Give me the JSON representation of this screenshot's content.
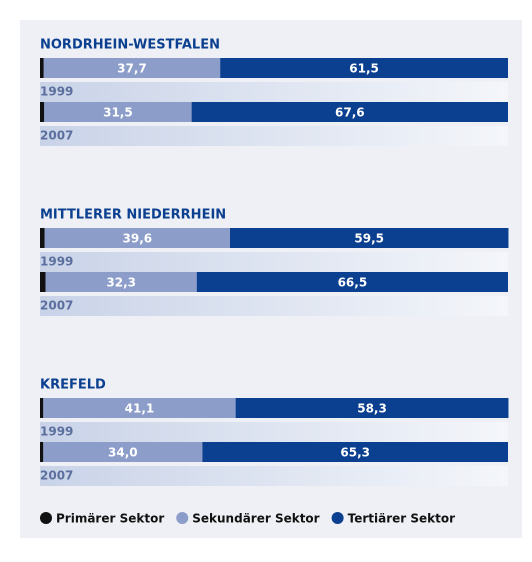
{
  "chart_data": {
    "type": "bar",
    "stacked": true,
    "orientation": "horizontal",
    "groups": [
      "NORDRHEIN-WESTFALEN",
      "MITTLERER NIEDERRHEIN",
      "KREFELD"
    ],
    "categories": [
      "1999",
      "2007",
      "1999",
      "2007",
      "1999",
      "2007"
    ],
    "xlim": [
      0,
      100
    ],
    "series": [
      {
        "name": "Primärer Sektor",
        "color": "#111111",
        "values": [
          0.8,
          0.9,
          1.0,
          1.2,
          0.7,
          0.7
        ],
        "value_labels": [
          "0,8",
          "0,9",
          "1,0",
          "1,2",
          "0,7",
          "0,7"
        ]
      },
      {
        "name": "Sekundärer Sektor",
        "color": "#8c9dca",
        "values": [
          37.7,
          31.5,
          39.6,
          32.3,
          41.1,
          34.0
        ],
        "value_labels": [
          "37,7",
          "31,5",
          "39,6",
          "32,3",
          "41,1",
          "34,0"
        ]
      },
      {
        "name": "Tertiärer Sektor",
        "color": "#0b3f8f",
        "values": [
          61.5,
          67.6,
          59.5,
          66.5,
          58.3,
          65.3
        ],
        "value_labels": [
          "61,5",
          "67,6",
          "59,5",
          "66,5",
          "58,3",
          "65,3"
        ]
      }
    ]
  }
}
